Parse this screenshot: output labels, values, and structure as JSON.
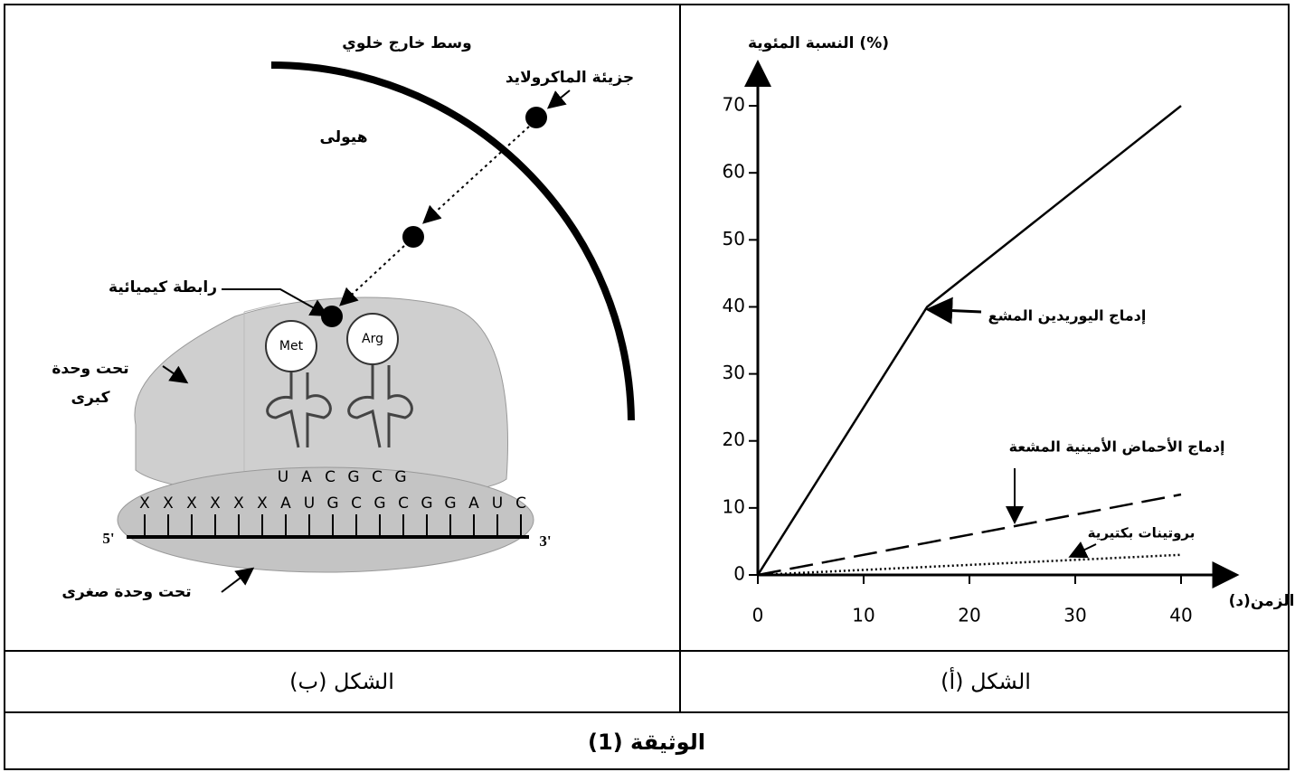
{
  "chart_data": {
    "type": "line",
    "y_label": "النسبة المئوية (%)",
    "x_label": "الزمن(د)",
    "x": [
      0,
      16,
      40
    ],
    "series": [
      {
        "name": "إدماج اليوريدين المشع",
        "color": "#000000",
        "dash": "solid",
        "values": [
          0,
          40,
          70
        ]
      },
      {
        "name": "إدماج الأحماض الأمينية المشعة",
        "color": "#000000",
        "dash": "dashed",
        "values": [
          0,
          4.8,
          12
        ]
      },
      {
        "name": "بروتينات بكتيرية",
        "color": "#000000",
        "dash": "dotted",
        "values": [
          0,
          1.2,
          3
        ]
      }
    ],
    "xlim": [
      0,
      45
    ],
    "ylim": [
      0,
      75
    ],
    "xticks": [
      0,
      10,
      20,
      30,
      40
    ],
    "yticks": [
      0,
      10,
      20,
      30,
      40,
      50,
      60,
      70
    ],
    "grid": false
  },
  "diagram": {
    "extracellular": "وسط خارج خلوي",
    "macrolide": "جزيئة الماكرولايد",
    "cytoplasm": "هيولى",
    "chemical_bond": "رابطة كيميائية",
    "large_subunit": [
      "تحت وحدة",
      "كبرى"
    ],
    "small_subunit": "تحت وحدة صغرى",
    "trna": [
      "Met",
      "Arg"
    ],
    "anticodons": [
      "U",
      "A",
      "C",
      "G",
      "C",
      "G"
    ],
    "mrna": [
      "X",
      "X",
      "X",
      "X",
      "X",
      "X",
      "A",
      "U",
      "G",
      "C",
      "G",
      "C",
      "G",
      "G",
      "A",
      "U",
      "C"
    ],
    "end_5": "5'",
    "end_3": "3'"
  },
  "captions": {
    "figure_b": "الشكل (ب)",
    "figure_a": "الشكل (أ)",
    "document": "الوثيقة (1)"
  }
}
